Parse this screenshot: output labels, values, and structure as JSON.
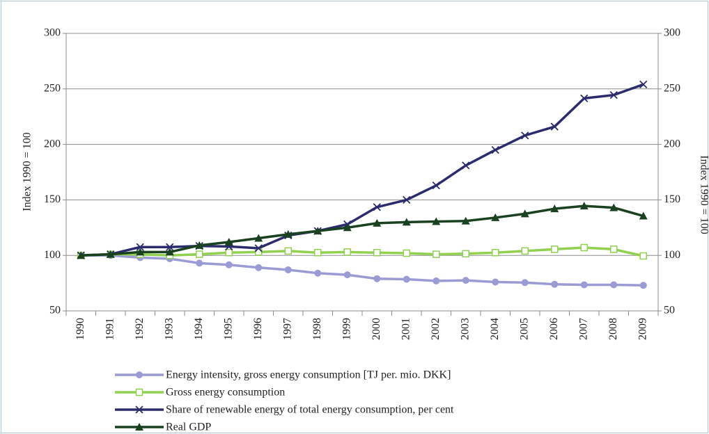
{
  "chart_data": {
    "type": "line",
    "y_label": "Index 1990 = 100",
    "y2_label": "Index 1990 = 100",
    "categories": [
      "1990",
      "1991",
      "1992",
      "1993",
      "1994",
      "1995",
      "1996",
      "1997",
      "1998",
      "1999",
      "2000",
      "2001",
      "2002",
      "2003",
      "2004",
      "2005",
      "2006",
      "2007",
      "2008",
      "2009"
    ],
    "series": [
      {
        "name": "Energy intensity, gross energy consumption [TJ per. mio. DKK]",
        "color": "#9b9bd6",
        "marker": "circle",
        "values": [
          100,
          100,
          98,
          97,
          93,
          91.5,
          89,
          87,
          84,
          82.5,
          79,
          78.5,
          77,
          77.5,
          76,
          75.5,
          74,
          73.5,
          73.5,
          73
        ]
      },
      {
        "name": "Gross energy consumption",
        "color": "#92d050",
        "marker": "square",
        "values": [
          100,
          101,
          101,
          100,
          101,
          102.5,
          103,
          104,
          102.5,
          103,
          102.5,
          102,
          101,
          101.5,
          102.5,
          104,
          105.5,
          107,
          105.5,
          99.5
        ]
      },
      {
        "name": "Share of renewable energy of total energy consumption, per cent",
        "color": "#2b2b6e",
        "marker": "x",
        "values": [
          100,
          101,
          107.5,
          107.5,
          108.5,
          108,
          106.5,
          118,
          122,
          128,
          143.5,
          150,
          163,
          181,
          195,
          208,
          216,
          241.5,
          244.5,
          254
        ]
      },
      {
        "name": "Real GDP",
        "color": "#1a4220",
        "marker": "triangle",
        "values": [
          100,
          101,
          103,
          103,
          109,
          112,
          115.5,
          119,
          122,
          125,
          129,
          130,
          130.5,
          131,
          134,
          137.5,
          142,
          144.5,
          143,
          135.5
        ]
      }
    ],
    "ylim": [
      50,
      300
    ],
    "yticks": [
      50,
      100,
      150,
      200,
      250,
      300
    ],
    "y2lim": [
      50,
      300
    ],
    "y2ticks": [
      50,
      100,
      150,
      200,
      250,
      300
    ],
    "grid": true
  }
}
